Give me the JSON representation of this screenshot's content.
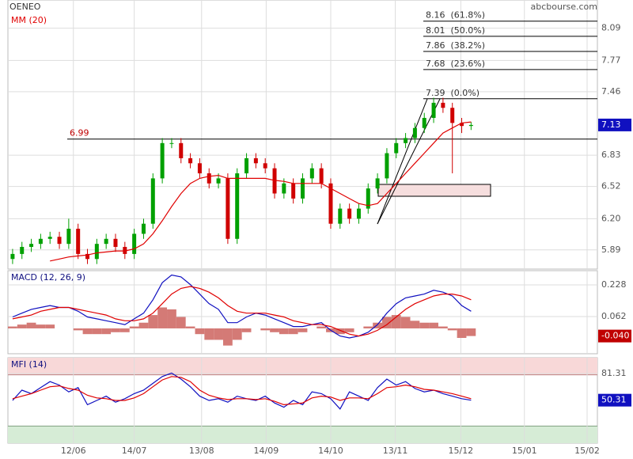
{
  "chart_data": [
    {
      "type": "candlestick",
      "title": "OENEO",
      "source": "abcbourse.com",
      "x": [
        0,
        1,
        2,
        3,
        4,
        5,
        6,
        7,
        8,
        9,
        10,
        11,
        12,
        13,
        14,
        15,
        16,
        17,
        18,
        19,
        20,
        21,
        22,
        23,
        24,
        25,
        26,
        27,
        28,
        29,
        30,
        31,
        32,
        33,
        34,
        35,
        36,
        37,
        38,
        39,
        40,
        41,
        42,
        43,
        44,
        45,
        46,
        47,
        48,
        49
      ],
      "open": [
        5.8,
        5.85,
        5.92,
        5.95,
        6.0,
        6.02,
        5.95,
        6.1,
        5.85,
        5.8,
        5.95,
        6.0,
        5.92,
        5.85,
        6.05,
        6.15,
        6.6,
        6.95,
        6.95,
        6.8,
        6.75,
        6.65,
        6.55,
        6.6,
        6.0,
        6.65,
        6.8,
        6.75,
        6.7,
        6.45,
        6.55,
        6.4,
        6.6,
        6.7,
        6.55,
        6.15,
        6.3,
        6.2,
        6.3,
        6.5,
        6.6,
        6.85,
        6.95,
        7.0,
        7.1,
        7.2,
        7.35,
        7.3,
        7.15,
        7.12
      ],
      "high": [
        5.9,
        5.97,
        6.0,
        6.05,
        6.07,
        6.07,
        6.2,
        6.15,
        5.9,
        6.0,
        6.05,
        6.05,
        5.97,
        6.1,
        6.2,
        6.65,
        7.0,
        7.0,
        7.0,
        6.85,
        6.8,
        6.7,
        6.65,
        6.65,
        6.7,
        6.85,
        6.85,
        6.8,
        6.75,
        6.6,
        6.6,
        6.65,
        6.75,
        6.75,
        6.6,
        6.35,
        6.35,
        6.35,
        6.55,
        6.65,
        6.9,
        7.0,
        7.05,
        7.15,
        7.25,
        7.4,
        7.4,
        7.35,
        7.2,
        7.16
      ],
      "low": [
        5.75,
        5.8,
        5.87,
        5.9,
        5.95,
        5.9,
        5.9,
        5.8,
        5.75,
        5.75,
        5.9,
        5.87,
        5.8,
        5.8,
        6.0,
        6.1,
        6.55,
        6.9,
        6.75,
        6.7,
        6.6,
        6.5,
        6.5,
        5.95,
        5.95,
        6.6,
        6.7,
        6.65,
        6.4,
        6.4,
        6.35,
        6.35,
        6.55,
        6.5,
        6.1,
        6.1,
        6.15,
        6.15,
        6.25,
        6.45,
        6.55,
        6.8,
        6.9,
        6.95,
        7.05,
        7.15,
        7.25,
        6.65,
        7.05,
        7.08
      ],
      "close": [
        5.85,
        5.92,
        5.95,
        6.0,
        6.02,
        5.95,
        6.1,
        5.85,
        5.8,
        5.95,
        6.0,
        5.92,
        5.85,
        6.05,
        6.15,
        6.6,
        6.95,
        6.95,
        6.8,
        6.75,
        6.65,
        6.55,
        6.6,
        6.0,
        6.65,
        6.8,
        6.75,
        6.7,
        6.45,
        6.55,
        6.4,
        6.6,
        6.7,
        6.55,
        6.15,
        6.3,
        6.2,
        6.3,
        6.5,
        6.6,
        6.85,
        6.95,
        7.0,
        7.1,
        7.2,
        7.35,
        7.3,
        7.15,
        7.12,
        7.13
      ],
      "up_color": "#00a000",
      "down_color": "#d00000",
      "series": [
        {
          "name": "MM (20)",
          "color": "#e00000",
          "values": [
            null,
            null,
            null,
            null,
            5.78,
            5.8,
            5.82,
            5.83,
            5.84,
            5.86,
            5.87,
            5.88,
            5.88,
            5.9,
            5.95,
            6.05,
            6.18,
            6.32,
            6.45,
            6.55,
            6.6,
            6.62,
            6.63,
            6.6,
            6.6,
            6.6,
            6.6,
            6.6,
            6.58,
            6.57,
            6.55,
            6.55,
            6.55,
            6.55,
            6.5,
            6.45,
            6.4,
            6.35,
            6.33,
            6.35,
            6.45,
            6.55,
            6.65,
            6.75,
            6.85,
            6.95,
            7.05,
            7.1,
            7.15,
            7.16
          ]
        }
      ],
      "level": 6.99,
      "fib_levels": [
        {
          "value": 8.16,
          "label": "8.16  (61.8%)"
        },
        {
          "value": 8.01,
          "label": "8.01  (50.0%)"
        },
        {
          "value": 7.86,
          "label": "7.86  (38.2%)"
        },
        {
          "value": 7.68,
          "label": "7.68  (23.6%)"
        },
        {
          "value": 7.39,
          "label": "7.39  (0.0%)"
        }
      ],
      "last": 7.13,
      "ylim": [
        5.7,
        8.37
      ],
      "yticks": [
        8.09,
        7.77,
        7.46,
        6.83,
        6.52,
        {
          "value": 6.2,
          "label": "6.20"
        },
        5.89
      ]
    },
    {
      "type": "macd",
      "title": "MACD (12, 26, 9)",
      "series": [
        {
          "color": "#1010c0",
          "values": [
            0.06,
            0.08,
            0.1,
            0.11,
            0.12,
            0.11,
            0.11,
            0.09,
            0.06,
            0.05,
            0.04,
            0.03,
            0.02,
            0.05,
            0.08,
            0.15,
            0.24,
            0.28,
            0.27,
            0.23,
            0.18,
            0.13,
            0.1,
            0.03,
            0.03,
            0.06,
            0.08,
            0.07,
            0.05,
            0.03,
            0.01,
            0.01,
            0.02,
            0.03,
            -0.01,
            -0.04,
            -0.05,
            -0.04,
            -0.02,
            0.02,
            0.08,
            0.13,
            0.16,
            0.17,
            0.18,
            0.2,
            0.19,
            0.17,
            0.12,
            0.09
          ]
        },
        {
          "color": "#e00000",
          "values": [
            0.05,
            0.06,
            0.07,
            0.09,
            0.1,
            0.11,
            0.11,
            0.1,
            0.09,
            0.08,
            0.07,
            0.05,
            0.04,
            0.04,
            0.05,
            0.08,
            0.13,
            0.18,
            0.21,
            0.22,
            0.21,
            0.19,
            0.16,
            0.12,
            0.09,
            0.08,
            0.08,
            0.08,
            0.07,
            0.06,
            0.04,
            0.03,
            0.02,
            0.02,
            0.01,
            -0.01,
            -0.03,
            -0.04,
            -0.03,
            -0.01,
            0.02,
            0.06,
            0.1,
            0.13,
            0.15,
            0.17,
            0.18,
            0.18,
            0.17,
            0.15
          ]
        }
      ],
      "histogram": [
        0.01,
        0.02,
        0.03,
        0.02,
        0.02,
        0,
        0,
        -0.01,
        -0.03,
        -0.03,
        -0.03,
        -0.02,
        -0.02,
        0.01,
        0.03,
        0.07,
        0.11,
        0.1,
        0.06,
        0.01,
        -0.03,
        -0.06,
        -0.06,
        -0.09,
        -0.06,
        -0.02,
        0,
        -0.01,
        -0.02,
        -0.03,
        -0.03,
        -0.02,
        0,
        0.01,
        -0.02,
        -0.03,
        -0.02,
        0,
        0.01,
        0.03,
        0.06,
        0.07,
        0.06,
        0.04,
        0.03,
        0.03,
        0.01,
        -0.01,
        -0.05,
        -0.04
      ],
      "histogram_color": "#d47a76",
      "last": {
        "value": -0.04,
        "label": "-0.040"
      },
      "ylim": [
        -0.133,
        0.303
      ],
      "yticks": [
        0.228,
        0.062
      ]
    },
    {
      "type": "mfi",
      "title": "MFI (14)",
      "series": [
        {
          "color": "#1010c0",
          "values": [
            50,
            62,
            58,
            65,
            72,
            68,
            60,
            65,
            45,
            50,
            55,
            48,
            52,
            58,
            62,
            70,
            78,
            82,
            75,
            66,
            55,
            50,
            52,
            48,
            55,
            52,
            50,
            55,
            47,
            42,
            50,
            45,
            60,
            58,
            52,
            40,
            60,
            55,
            50,
            65,
            75,
            68,
            72,
            64,
            60,
            62,
            58,
            55,
            52,
            50.31
          ]
        },
        {
          "color": "#e00000",
          "values": [
            52,
            55,
            58,
            62,
            66,
            67,
            64,
            62,
            56,
            53,
            52,
            50,
            50,
            53,
            58,
            66,
            74,
            78,
            77,
            72,
            62,
            56,
            53,
            51,
            52,
            52,
            51,
            52,
            49,
            45,
            46,
            47,
            53,
            55,
            54,
            50,
            53,
            53,
            52,
            58,
            65,
            66,
            68,
            66,
            63,
            62,
            60,
            58,
            55,
            52
          ]
        }
      ],
      "overbought": 80,
      "oversold": 20,
      "last": 50.31,
      "ylim": [
        0,
        100
      ],
      "yticks": [
        81.31
      ],
      "xlim": [
        -0.5,
        62.5
      ],
      "xticks": [
        {
          "value": 6.5,
          "label": "12/06"
        },
        {
          "value": 13,
          "label": "14/07"
        },
        {
          "value": 20.2,
          "label": "13/08"
        },
        {
          "value": 27.1,
          "label": "14/09"
        },
        {
          "value": 34,
          "label": "14/10"
        },
        {
          "value": 40.9,
          "label": "13/11"
        },
        {
          "value": 47.9,
          "label": "15/12"
        },
        {
          "value": 54.7,
          "label": "15/01"
        },
        {
          "value": 61.4,
          "label": "15/02"
        }
      ]
    }
  ]
}
